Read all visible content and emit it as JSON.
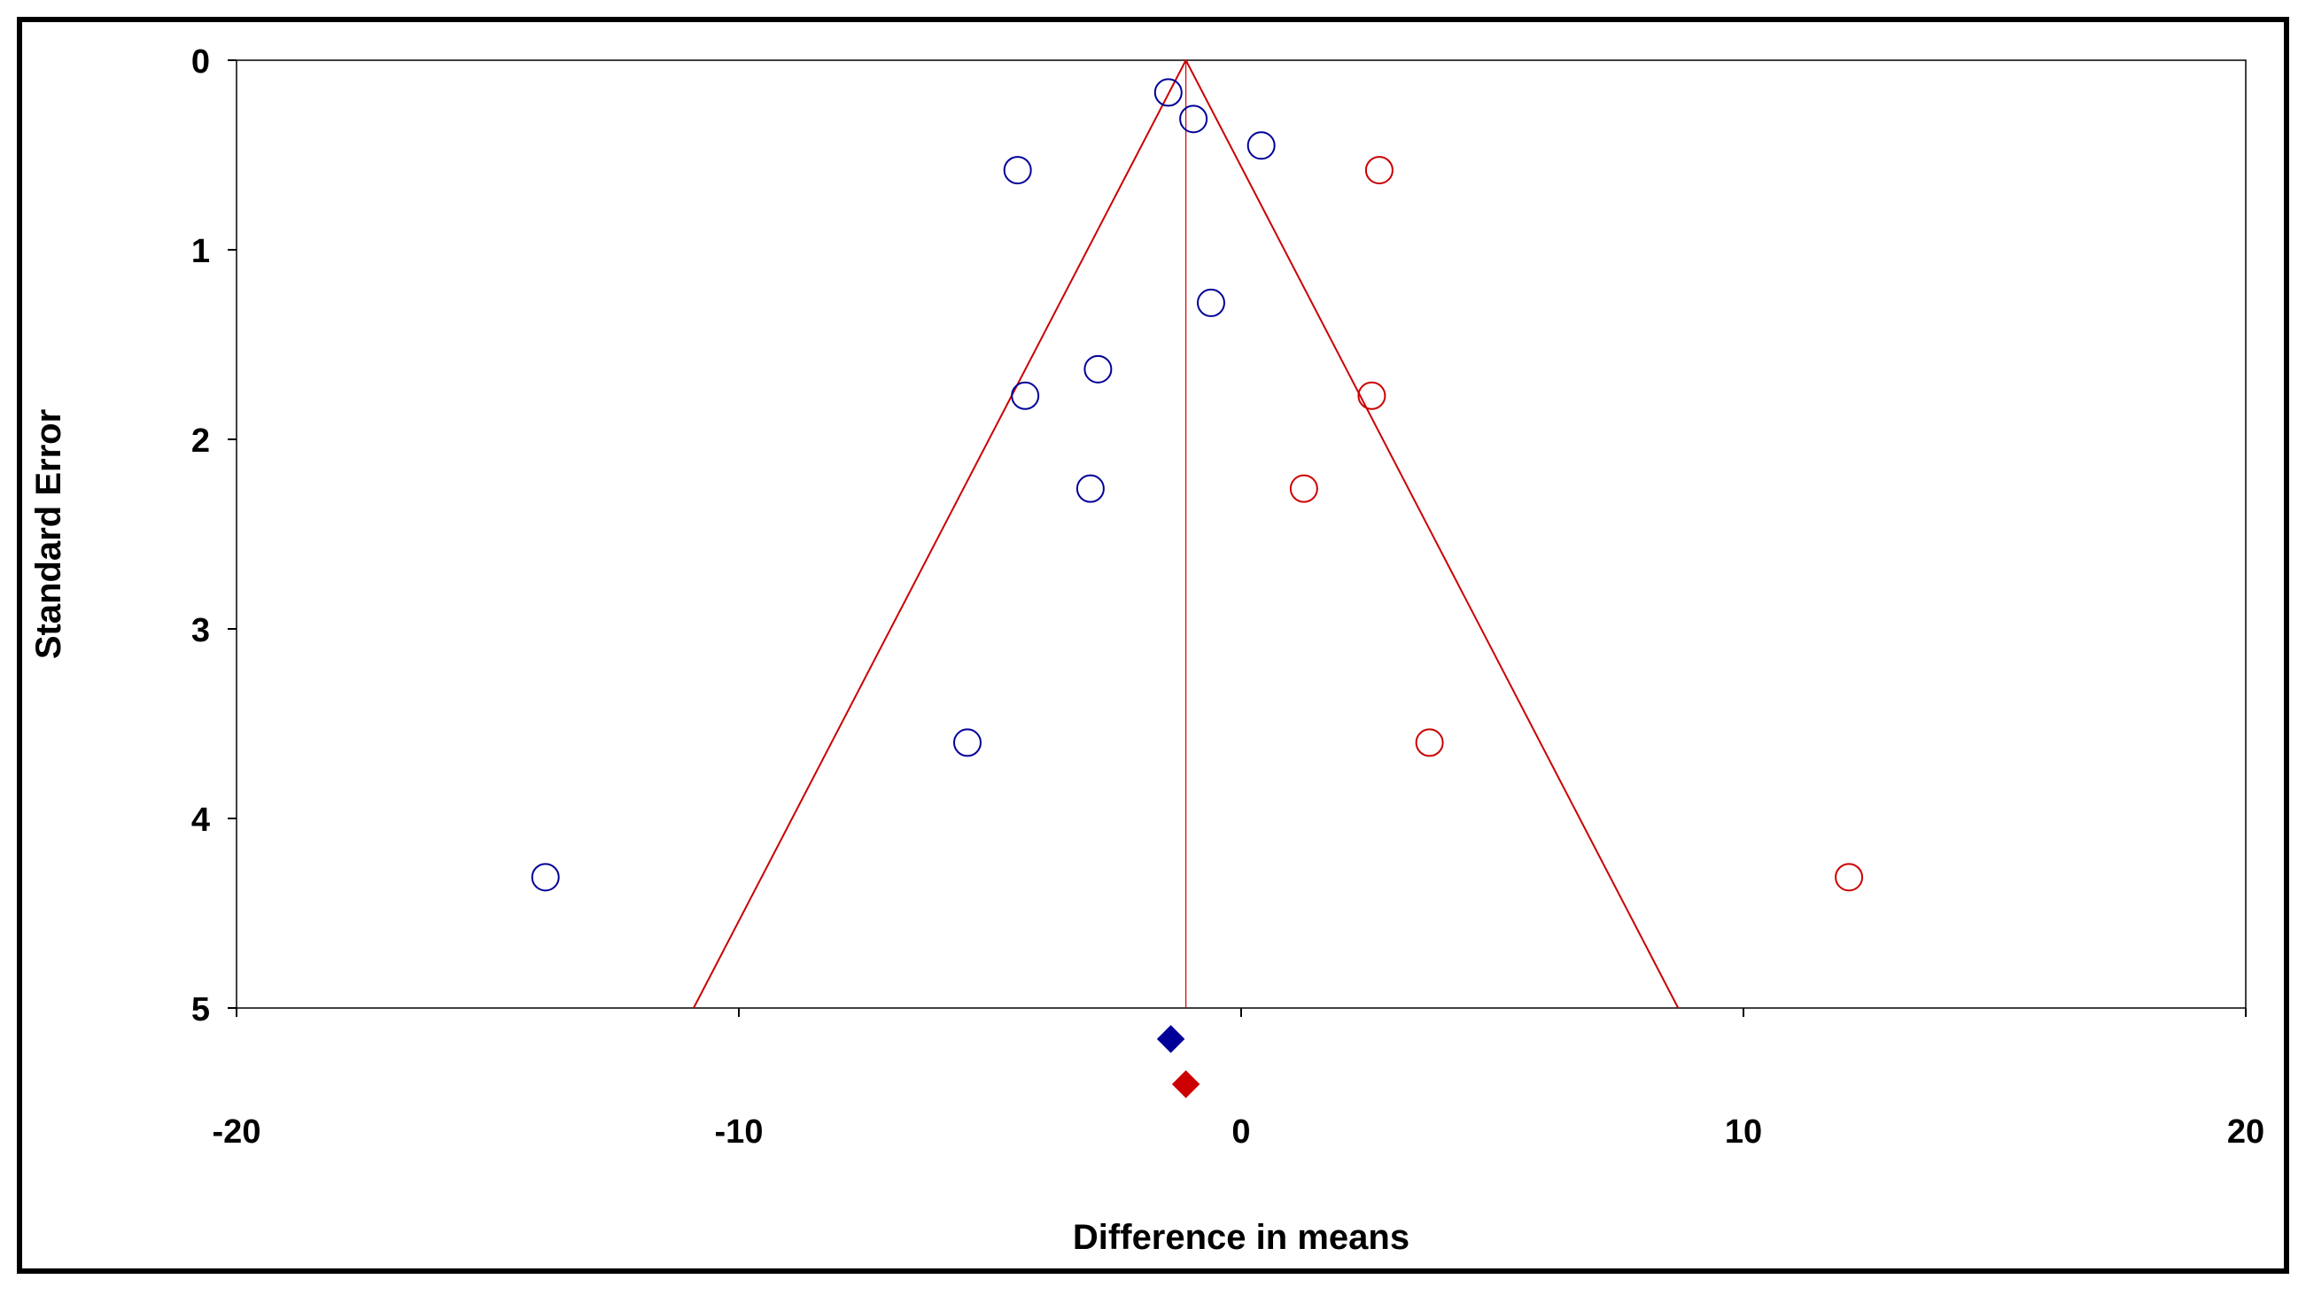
{
  "chart_data": {
    "type": "scatter",
    "subtype": "funnel-plot",
    "xlabel": "Difference in means",
    "ylabel": "Standard Error",
    "xlim": [
      -20,
      20
    ],
    "ylim": [
      0,
      5
    ],
    "y_inverted": true,
    "x_ticks": [
      -20,
      -10,
      0,
      10,
      20
    ],
    "y_ticks": [
      0,
      1,
      2,
      3,
      4,
      5
    ],
    "grid": false,
    "legend": "none",
    "funnel": {
      "center": -1.1,
      "apex_se": 0,
      "bottom_se": 5,
      "left_at_bottom": -10.9,
      "right_at_bottom": 8.7,
      "color": "#cc0000"
    },
    "series": [
      {
        "color": "#000099",
        "marker": "open-circle",
        "points": [
          {
            "x": -1.45,
            "y": 0.17
          },
          {
            "x": -0.95,
            "y": 0.31
          },
          {
            "x": 0.4,
            "y": 0.45
          },
          {
            "x": -4.45,
            "y": 0.58
          },
          {
            "x": -0.6,
            "y": 1.28
          },
          {
            "x": -2.85,
            "y": 1.63
          },
          {
            "x": -4.3,
            "y": 1.77
          },
          {
            "x": -3.0,
            "y": 2.26
          },
          {
            "x": -5.45,
            "y": 3.6
          },
          {
            "x": -13.85,
            "y": 4.31
          }
        ]
      },
      {
        "color": "#cc0000",
        "marker": "open-circle",
        "points": [
          {
            "x": 2.75,
            "y": 0.58
          },
          {
            "x": 2.6,
            "y": 1.77
          },
          {
            "x": 1.25,
            "y": 2.26
          },
          {
            "x": 3.75,
            "y": 3.6
          },
          {
            "x": 12.1,
            "y": 4.31
          }
        ]
      }
    ],
    "summary_markers": [
      {
        "x": -1.4,
        "color": "#000099",
        "shape": "diamond",
        "row": 1
      },
      {
        "x": -1.1,
        "color": "#cc0000",
        "shape": "diamond",
        "row": 2
      }
    ]
  }
}
